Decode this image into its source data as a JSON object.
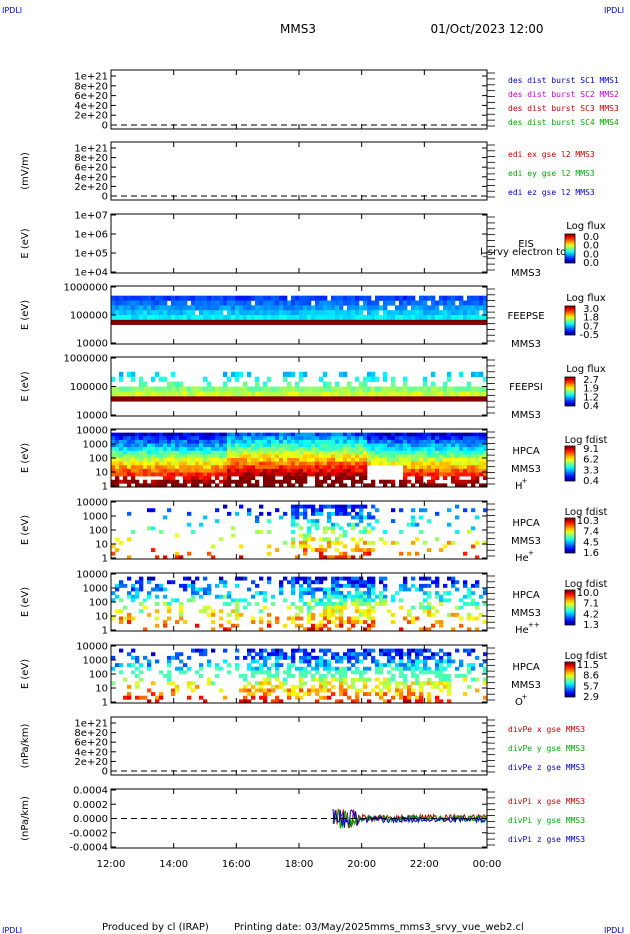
{
  "header": {
    "corner_tl": "IPDLI",
    "corner_tr": "IPDLI",
    "corner_bl": "IPDLI",
    "corner_br": "IPDLI",
    "title": "MMS3",
    "datetime": "01/Oct/2023 12:00"
  },
  "footer": {
    "produced": "Produced by cl (IRAP)",
    "printing": "Printing date: 03/May/2025",
    "script": "mms_mms3_srvy_vue_web2.cl"
  },
  "colors": {
    "mms1": "#0000cc",
    "mms2": "#cc00cc",
    "mms3": "#cc0000",
    "mms4": "#00aa00",
    "x": "#cc0000",
    "y": "#00aa00",
    "z": "#0000cc"
  },
  "chart_data": {
    "type": "heatmap",
    "x_ticks": [
      "12:00",
      "14:00",
      "16:00",
      "18:00",
      "20:00",
      "22:00",
      "00:00"
    ],
    "panels": [
      {
        "type": "line",
        "ylabel": "",
        "yticks": [
          "1e+21",
          "8e+20",
          "6e+20",
          "4e+20",
          "2e+20",
          "0"
        ],
        "legend": [
          {
            "text": "des dist burst SC1 MMS1",
            "color": "mms1"
          },
          {
            "text": "des dist burst SC2 MMS2",
            "color": "mms2"
          },
          {
            "text": "des dist burst SC3 MMS3",
            "color": "mms3"
          },
          {
            "text": "des dist burst SC4 MMS4",
            "color": "mms4"
          }
        ]
      },
      {
        "type": "line",
        "ylabel": "(mV/m)",
        "yticks": [
          "1e+21",
          "8e+20",
          "6e+20",
          "4e+20",
          "2e+20",
          "0"
        ],
        "legend": [
          {
            "text": "edi ex gse l2 MMS3",
            "color": "x"
          },
          {
            "text": "edi ey gse l2 MMS3",
            "color": "y"
          },
          {
            "text": "edi ez gse l2 MMS3",
            "color": "z"
          }
        ]
      },
      {
        "type": "heatmap",
        "ylabel": "E (eV)",
        "yticks": [
          "1e+07",
          "1e+06",
          "1e+05",
          "1e+04"
        ],
        "instrument": [
          "EIS",
          "MMS3"
        ],
        "overflow_label": "l_srvy electron to",
        "cb_title": "Log flux",
        "cb_ticks": [
          "0.0",
          "0.0",
          "0.0",
          "0.0"
        ]
      },
      {
        "type": "heatmap",
        "ylabel": "E (eV)",
        "yticks": [
          "1000000",
          "100000",
          "10000"
        ],
        "instrument": [
          "FEEPSE",
          "MMS3"
        ],
        "cb_title": "Log flux",
        "cb_ticks": [
          "3.0",
          "1.8",
          "0.7",
          "-0.5"
        ]
      },
      {
        "type": "heatmap",
        "ylabel": "E (eV)",
        "yticks": [
          "1000000",
          "100000",
          "10000"
        ],
        "instrument": [
          "FEEPSI",
          "MMS3"
        ],
        "cb_title": "Log flux",
        "cb_ticks": [
          "2.7",
          "1.9",
          "1.2",
          "0.4"
        ]
      },
      {
        "type": "heatmap",
        "ylabel": "E (eV)",
        "yticks": [
          "10000",
          "1000",
          "100",
          "10",
          "1"
        ],
        "instrument": [
          "HPCA",
          "MMS3"
        ],
        "ion": "H",
        "ion_charge": "+",
        "cb_title": "Log fdist",
        "cb_ticks": [
          "9.1",
          "6.2",
          "3.3",
          "0.4"
        ]
      },
      {
        "type": "heatmap",
        "ylabel": "E (eV)",
        "yticks": [
          "10000",
          "1000",
          "100",
          "10",
          "1"
        ],
        "instrument": [
          "HPCA",
          "MMS3"
        ],
        "ion": "He",
        "ion_charge": "+",
        "cb_title": "Log fdist",
        "cb_ticks": [
          "10.3",
          "7.4",
          "4.5",
          "1.6"
        ]
      },
      {
        "type": "heatmap",
        "ylabel": "E (eV)",
        "yticks": [
          "10000",
          "1000",
          "100",
          "10",
          "1"
        ],
        "instrument": [
          "HPCA",
          "MMS3"
        ],
        "ion": "He",
        "ion_charge": "++",
        "cb_title": "Log fdist",
        "cb_ticks": [
          "10.0",
          "7.1",
          "4.2",
          "1.3"
        ]
      },
      {
        "type": "heatmap",
        "ylabel": "E (eV)",
        "yticks": [
          "10000",
          "1000",
          "100",
          "10",
          "1"
        ],
        "instrument": [
          "HPCA",
          "MMS3"
        ],
        "ion": "O",
        "ion_charge": "+",
        "cb_title": "Log fdist",
        "cb_ticks": [
          "11.5",
          "8.6",
          "5.7",
          "2.9"
        ]
      },
      {
        "type": "line",
        "ylabel": "(nPa/km)",
        "yticks": [
          "1e+21",
          "8e+20",
          "6e+20",
          "4e+20",
          "2e+20",
          "0"
        ],
        "legend": [
          {
            "text": "divPe x gse MMS3",
            "color": "x"
          },
          {
            "text": "divPe y gse MMS3",
            "color": "y"
          },
          {
            "text": "divPe z gse MMS3",
            "color": "z"
          }
        ]
      },
      {
        "type": "line",
        "ylabel": "(nPa/km)",
        "yticks": [
          "0.0004",
          "0.0002",
          "0.0000",
          "-0.0002",
          "-0.0004"
        ],
        "legend": [
          {
            "text": "divPi x gse MMS3",
            "color": "x"
          },
          {
            "text": "divPi y gse MMS3",
            "color": "y"
          },
          {
            "text": "divPi z gse MMS3",
            "color": "z"
          }
        ]
      }
    ]
  }
}
